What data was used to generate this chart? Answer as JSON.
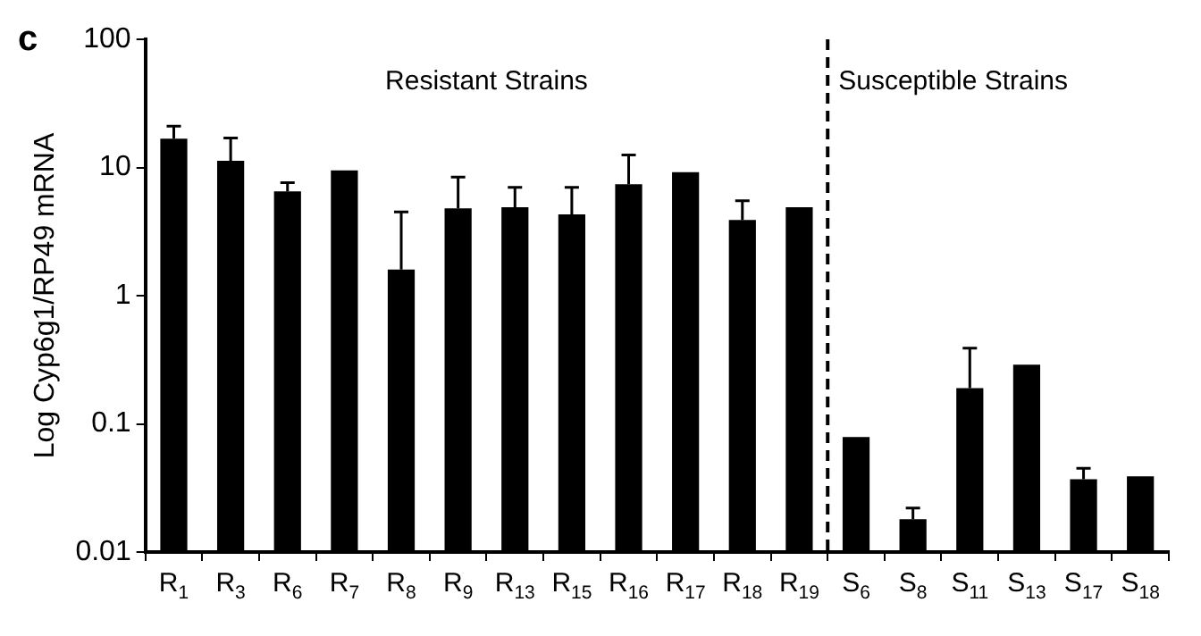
{
  "chart_data": {
    "type": "bar",
    "title": "c",
    "ylabel": "Log Cyp6g1/RP49 mRNA",
    "categories": [
      "R$_{1}$",
      "R$_{3}$",
      "R$_{6}$",
      "R$_{7}$",
      "R$_{8}$",
      "R$_{9}$",
      "R$_{13}$",
      "R$_{15}$",
      "R$_{16}$",
      "R$_{17}$",
      "R$_{18}$",
      "R$_{19}$",
      "S$_{6}$",
      "S$_{8}$",
      "S$_{11}$",
      "S$_{13}$",
      "S$_{17}$",
      "S$_{18}$"
    ],
    "values": [
      16.8,
      11.3,
      6.5,
      9.5,
      1.6,
      4.8,
      4.9,
      4.3,
      7.4,
      9.2,
      3.9,
      4.9,
      0.079,
      0.018,
      0.19,
      0.29,
      0.037,
      0.039
    ],
    "errors": [
      [
        16.8,
        21
      ],
      [
        11.3,
        17
      ],
      [
        6.5,
        7.6
      ],
      null,
      [
        1.6,
        4.5
      ],
      [
        4.8,
        8.4
      ],
      [
        4.9,
        7
      ],
      [
        4.3,
        7
      ],
      [
        7.4,
        12.5
      ],
      null,
      [
        3.9,
        5.5
      ],
      null,
      null,
      [
        0.018,
        0.022
      ],
      [
        0.19,
        0.39
      ],
      null,
      [
        0.037,
        0.045
      ],
      null
    ],
    "color": "#000000",
    "log": "y",
    "ylim": [
      0.01,
      100
    ],
    "yticks": [
      0.01,
      0.1,
      1,
      10,
      100
    ],
    "grid": false,
    "legend": false,
    "annotations": [
      "Resistant Strains",
      "Susceptible Strains"
    ]
  }
}
